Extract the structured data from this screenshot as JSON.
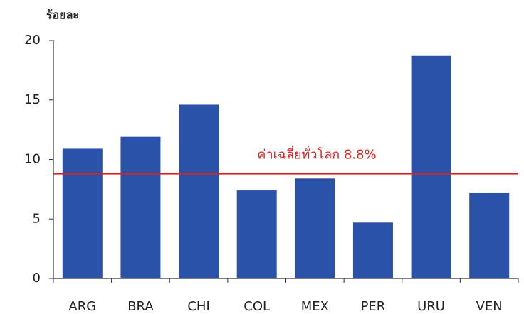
{
  "chart_data": {
    "type": "bar",
    "y_label": "ร้อยละ",
    "categories": [
      "ARG",
      "BRA",
      "CHI",
      "COL",
      "MEX",
      "PER",
      "URU",
      "VEN"
    ],
    "values": [
      10.9,
      11.9,
      14.6,
      7.4,
      8.4,
      4.7,
      18.7,
      7.2
    ],
    "color": "#2a52a8",
    "ylim": [
      0,
      20
    ],
    "yticks": [
      0,
      5,
      10,
      15,
      20
    ],
    "reference_line": {
      "value": 8.8,
      "label": "ค่าเฉลี่ยทั่วโลก 8.8%",
      "color": "#e0201e"
    }
  }
}
